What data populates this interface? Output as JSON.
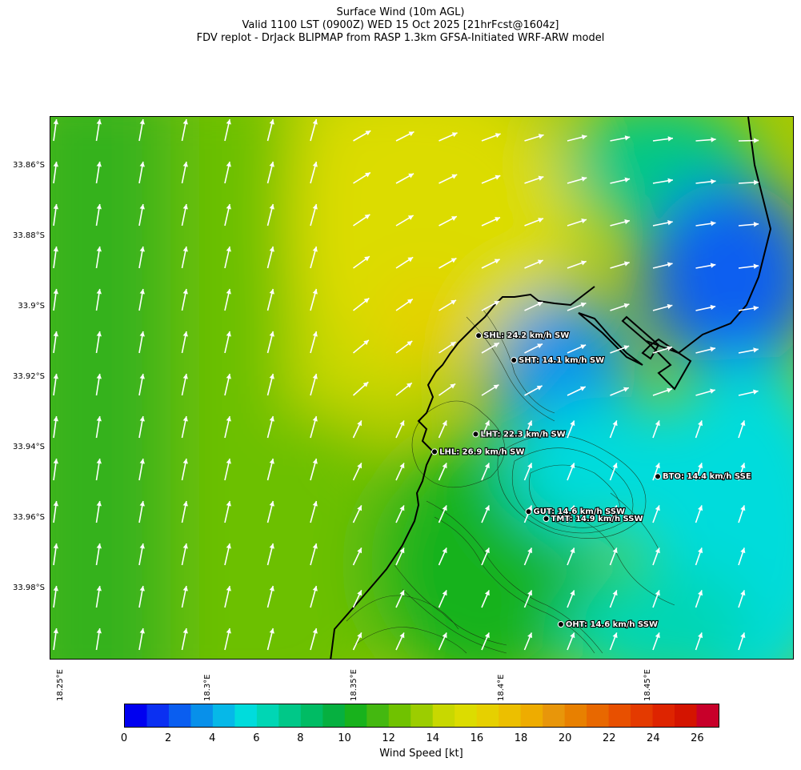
{
  "title": {
    "line1": "Surface Wind (10m AGL)",
    "line2": "Valid 1100 LST (0900Z) WED 15 Oct 2025 [21hrFcst@1604z]",
    "line3": "FDV replot - DrJack BLIPMAP from RASP 1.3km GFSA-Initiated WRF-ARW model"
  },
  "map_data": {
    "lat_labels": [
      "33.86°S",
      "33.88°S",
      "33.9°S",
      "33.92°S",
      "33.94°S",
      "33.96°S",
      "33.98°S"
    ],
    "lon_labels": [
      "18.25°E",
      "18.3°E",
      "18.35°E",
      "18.4°E",
      "18.45°E"
    ],
    "lat_values": [
      -33.86,
      -33.88,
      -33.9,
      -33.92,
      -33.94,
      -33.96,
      -33.98
    ],
    "lon_values": [
      18.25,
      18.3,
      18.35,
      18.4,
      18.45
    ],
    "stations": [
      {
        "id": "SHL",
        "label": "SHL: 24.2 km/h SW",
        "lon": 18.392,
        "lat": -33.908
      },
      {
        "id": "SHT",
        "label": "SHT: 14.1 km/h SW",
        "lon": 18.404,
        "lat": -33.915
      },
      {
        "id": "LHT",
        "label": "LHT: 22.3 km/h SW",
        "lon": 18.391,
        "lat": -33.936
      },
      {
        "id": "LHL",
        "label": "LHL: 26.9 km/h SW",
        "lon": 18.377,
        "lat": -33.941
      },
      {
        "id": "BTO",
        "label": "BTO: 14.4 km/h SSE",
        "lon": 18.453,
        "lat": -33.948
      },
      {
        "id": "GUT",
        "label": "GUT: 14.6 km/h SSW",
        "lon": 18.409,
        "lat": -33.958
      },
      {
        "id": "TMT",
        "label": "TMT: 14.9 km/h SSW",
        "lon": 18.415,
        "lat": -33.96
      },
      {
        "id": "OHT",
        "label": "OHT: 14.6 km/h SSW",
        "lon": 18.42,
        "lat": -33.99
      }
    ]
  },
  "colorbar": {
    "label": "Wind Speed [kt]",
    "min": 0,
    "max": 27,
    "ticks": [
      "0",
      "2",
      "4",
      "6",
      "8",
      "10",
      "12",
      "14",
      "16",
      "18",
      "20",
      "22",
      "24",
      "26"
    ],
    "colors": [
      "#0000f0",
      "#0b30f2",
      "#0a5ef0",
      "#0890ea",
      "#06b8e8",
      "#00dcdc",
      "#00d6b4",
      "#00c888",
      "#00bc64",
      "#06b040",
      "#18b21c",
      "#44b810",
      "#70c200",
      "#9ccd00",
      "#c8d800",
      "#dcdc00",
      "#e6d000",
      "#ecbf00",
      "#eeac00",
      "#e8960a",
      "#e88000",
      "#e86800",
      "#e85000",
      "#e43a00",
      "#de2400",
      "#d41400",
      "#c8002a"
    ]
  }
}
